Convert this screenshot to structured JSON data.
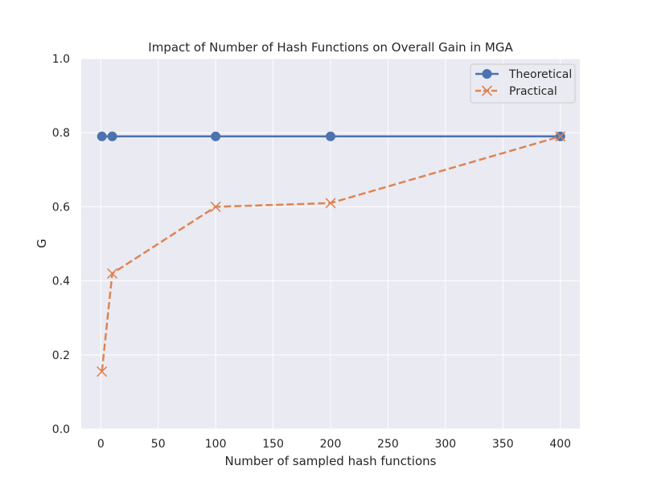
{
  "chart_data": {
    "type": "line",
    "title": "Impact of Number of Hash Functions on Overall Gain in MGA",
    "xlabel": "Number of sampled hash functions",
    "ylabel": "G",
    "xlim": [
      -17,
      417
    ],
    "ylim": [
      0.0,
      1.0
    ],
    "xticks": [
      "0",
      "50",
      "100",
      "150",
      "200",
      "250",
      "300",
      "350",
      "400"
    ],
    "yticks": [
      "0.0",
      "0.2",
      "0.4",
      "0.6",
      "0.8",
      "1.0"
    ],
    "grid": true,
    "legend_position": "top-right",
    "series": [
      {
        "name": "Theoretical",
        "color": "#4c72b0",
        "line_style": "solid",
        "marker": "circle",
        "x": [
          1,
          10,
          100,
          200,
          400
        ],
        "y": [
          0.79,
          0.79,
          0.79,
          0.79,
          0.79
        ]
      },
      {
        "name": "Practical",
        "color": "#dd8452",
        "line_style": "dashed",
        "marker": "x",
        "x": [
          1,
          10,
          100,
          200,
          400
        ],
        "y": [
          0.155,
          0.42,
          0.6,
          0.61,
          0.79
        ]
      }
    ]
  }
}
